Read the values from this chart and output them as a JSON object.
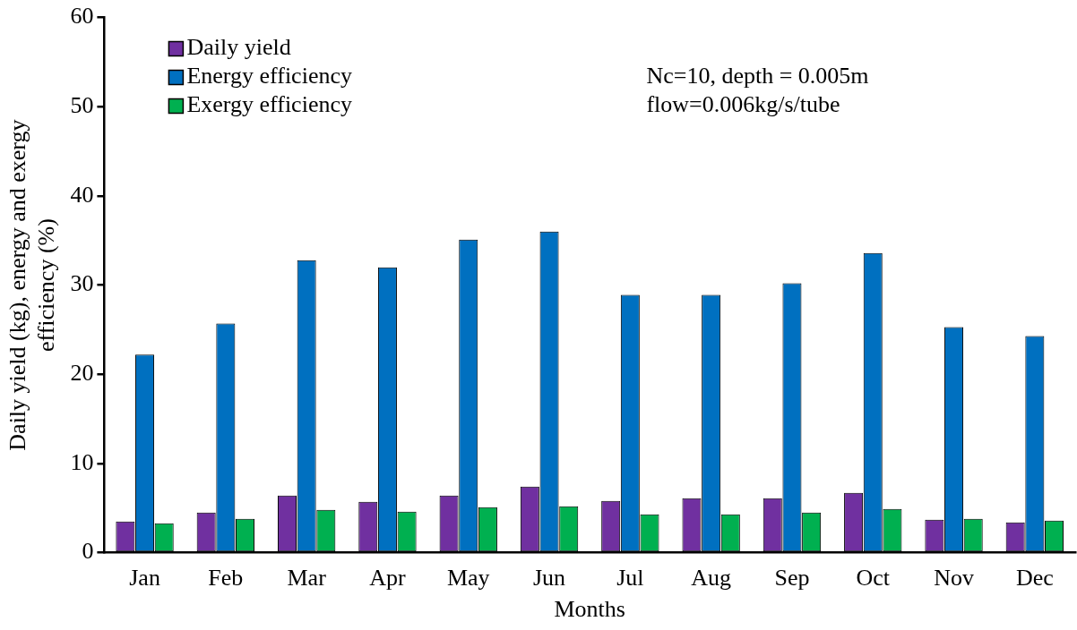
{
  "chart_data": {
    "type": "bar",
    "xlabel": "Months",
    "ylabel": "Daily yield (kg), energy and exergy efficiency (%)",
    "categories": [
      "Jan",
      "Feb",
      "Mar",
      "Apr",
      "May",
      "Jun",
      "Jul",
      "Aug",
      "Sep",
      "Oct",
      "Nov",
      "Dec"
    ],
    "series": [
      {
        "name": "Daily yield",
        "color": "#7030a0",
        "values": [
          3.5,
          4.5,
          6.4,
          5.7,
          6.4,
          7.4,
          5.8,
          6.1,
          6.1,
          6.7,
          3.7,
          3.4
        ]
      },
      {
        "name": "Energy efficiency",
        "color": "#0070c0",
        "values": [
          22.2,
          25.7,
          32.8,
          32.0,
          35.1,
          36.0,
          28.9,
          28.9,
          30.2,
          33.6,
          25.3,
          24.3
        ]
      },
      {
        "name": "Exergy efficiency",
        "color": "#00b050",
        "values": [
          3.3,
          3.8,
          4.8,
          4.6,
          5.1,
          5.2,
          4.3,
          4.3,
          4.5,
          4.9,
          3.8,
          3.6
        ]
      }
    ],
    "ylim": [
      0,
      60
    ],
    "yticks": [
      0,
      10,
      20,
      30,
      40,
      50,
      60
    ],
    "grid": false,
    "legend": "top left",
    "annotations": [
      "Nc=10, depth = 0.005m",
      "flow=0.006kg/s/tube"
    ]
  }
}
